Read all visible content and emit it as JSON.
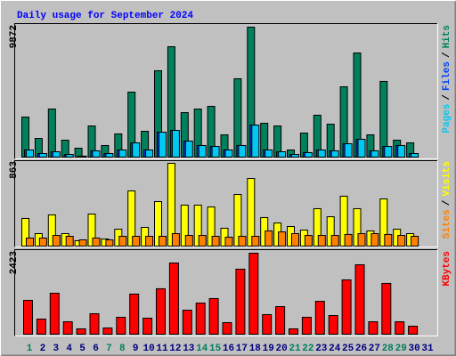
{
  "chart_data": [
    {
      "type": "bar",
      "title": "Daily usage for September 2024",
      "ylim": [
        0,
        9872
      ],
      "yticks": [
        9872
      ],
      "legend_separator": "/",
      "series": [
        {
          "name": "Hits",
          "color": "#00805c",
          "values": [
            3040,
            1420,
            3650,
            1285,
            676,
            2366,
            880,
            1760,
            4935,
            1960,
            6560,
            8385,
            3380,
            3650,
            3854,
            1690,
            5950,
            9872,
            2570,
            2366,
            540,
            1825,
            3180,
            2500,
            5340,
            7910,
            1690,
            5750,
            1285,
            1080,
            null
          ]
        },
        {
          "name": "Files",
          "color": "#0040ff",
          "values": [
            540,
            270,
            405,
            200,
            70,
            475,
            270,
            540,
            1080,
            540,
            1890,
            2030,
            1215,
            880,
            810,
            540,
            880,
            2430,
            540,
            405,
            200,
            340,
            540,
            475,
            1015,
            1350,
            475,
            810,
            880,
            270,
            null
          ]
        },
        {
          "name": "Pages",
          "color": "#00c8f0",
          "values": [
            540,
            270,
            405,
            200,
            70,
            475,
            270,
            540,
            1080,
            540,
            1890,
            2030,
            1215,
            880,
            810,
            540,
            880,
            2430,
            540,
            405,
            200,
            340,
            540,
            475,
            1015,
            1350,
            475,
            810,
            880,
            270,
            null
          ]
        }
      ]
    },
    {
      "type": "bar",
      "ylim": [
        0,
        863
      ],
      "yticks": [
        863
      ],
      "legend_separator": "/",
      "series": [
        {
          "name": "Visits",
          "color": "#ffff00",
          "values": [
            288,
            130,
            325,
            130,
            56,
            334,
            74,
            176,
            575,
            195,
            464,
            863,
            427,
            427,
            408,
            186,
            538,
            705,
            297,
            241,
            204,
            167,
            390,
            306,
            520,
            390,
            158,
            492,
            176,
            130,
            null
          ]
        },
        {
          "name": "Sites",
          "color": "#ff8000",
          "values": [
            84,
            84,
            111,
            102,
            65,
            84,
            65,
            102,
            102,
            102,
            102,
            130,
            111,
            111,
            102,
            93,
            102,
            102,
            158,
            148,
            130,
            111,
            111,
            111,
            121,
            130,
            130,
            121,
            111,
            102,
            null
          ]
        }
      ]
    },
    {
      "type": "bar",
      "ylim": [
        0,
        2423
      ],
      "yticks": [
        2423
      ],
      "series": [
        {
          "name": "KBytes",
          "color": "#ff0000",
          "values": [
            1013,
            452,
            1226,
            372,
            160,
            612,
            186,
            506,
            1200,
            479,
            1360,
            2130,
            718,
            931,
            1066,
            346,
            1945,
            2423,
            586,
            825,
            160,
            506,
            985,
            559,
            1625,
            2077,
            372,
            1519,
            372,
            239,
            null
          ]
        }
      ],
      "categories": [
        "1",
        "2",
        "3",
        "4",
        "5",
        "6",
        "7",
        "8",
        "9",
        "10",
        "11",
        "12",
        "13",
        "14",
        "15",
        "16",
        "17",
        "18",
        "19",
        "20",
        "21",
        "22",
        "23",
        "24",
        "25",
        "26",
        "27",
        "28",
        "29",
        "30",
        "31"
      ],
      "category_colors": [
        "#00805c",
        "#000080",
        "#000080",
        "#000080",
        "#000080",
        "#000080",
        "#00805c",
        "#00805c",
        "#000080",
        "#000080",
        "#000080",
        "#000080",
        "#000080",
        "#00805c",
        "#00805c",
        "#000080",
        "#000080",
        "#000080",
        "#000080",
        "#000080",
        "#00805c",
        "#00805c",
        "#000080",
        "#000080",
        "#000080",
        "#000080",
        "#000080",
        "#00805c",
        "#00805c",
        "#000080",
        "#000080"
      ]
    }
  ]
}
